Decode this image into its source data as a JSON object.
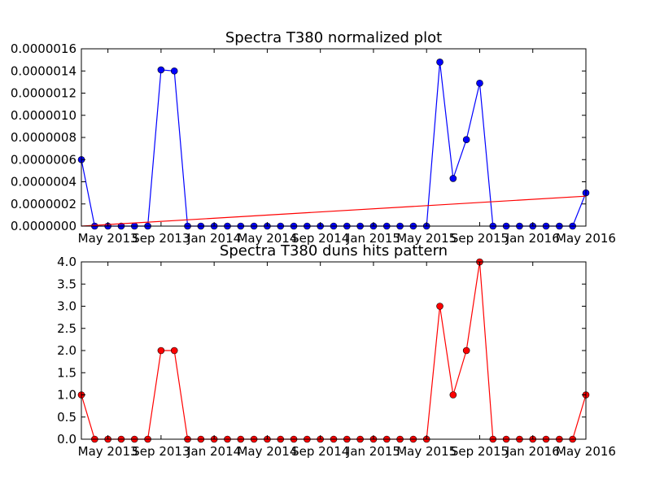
{
  "chart_data": [
    {
      "type": "line",
      "title": "Spectra T380 normalized plot",
      "xlabel": "",
      "ylabel": "",
      "xlim": [
        "2013-03",
        "2016-05"
      ],
      "ylim": [
        0,
        1.6e-06
      ],
      "grid": false,
      "x_tick_labels": [
        "May 2013",
        "Sep 2013",
        "Jan 2014",
        "May 2014",
        "Sep 2014",
        "Jan 2015",
        "May 2015",
        "Sep 2015",
        "Jan 2016",
        "May 2016"
      ],
      "y_tick_labels": [
        "0.0000000",
        "0.0000002",
        "0.0000004",
        "0.0000006",
        "0.0000008",
        "0.0000010",
        "0.0000012",
        "0.0000014",
        "0.0000016"
      ],
      "y_ticks": [
        0,
        2e-07,
        4e-07,
        6e-07,
        8e-07,
        1e-06,
        1.2e-06,
        1.4e-06,
        1.6e-06
      ],
      "x": [
        "2013-03",
        "2013-04",
        "2013-05",
        "2013-06",
        "2013-07",
        "2013-08",
        "2013-09",
        "2013-10",
        "2013-11",
        "2013-12",
        "2014-01",
        "2014-02",
        "2014-03",
        "2014-04",
        "2014-05",
        "2014-06",
        "2014-07",
        "2014-08",
        "2014-09",
        "2014-10",
        "2014-11",
        "2014-12",
        "2015-01",
        "2015-02",
        "2015-03",
        "2015-04",
        "2015-05",
        "2015-06",
        "2015-07",
        "2015-08",
        "2015-09",
        "2015-10",
        "2015-11",
        "2015-12",
        "2016-01",
        "2016-02",
        "2016-03",
        "2016-04",
        "2016-05"
      ],
      "series": [
        {
          "color": "#0000ff",
          "marker": "circle",
          "values": [
            6e-07,
            0,
            0,
            0,
            0,
            0,
            1.41e-06,
            1.4e-06,
            0,
            0,
            0,
            0,
            0,
            0,
            0,
            0,
            0,
            0,
            0,
            0,
            0,
            0,
            0,
            0,
            0,
            0,
            0,
            1.48e-06,
            4.3e-07,
            7.8e-07,
            1.29e-06,
            0,
            0,
            0,
            0,
            0,
            0,
            0,
            3e-07
          ]
        },
        {
          "color": "#ff0000",
          "marker": "none",
          "x": [
            "2013-03",
            "2016-05"
          ],
          "values": [
            0,
            2.7e-07
          ]
        }
      ]
    },
    {
      "type": "line",
      "title": "Spectra T380 duns hits pattern",
      "xlabel": "",
      "ylabel": "",
      "xlim": [
        "2013-03",
        "2016-05"
      ],
      "ylim": [
        0,
        4
      ],
      "grid": false,
      "x_tick_labels": [
        "May 2013",
        "Sep 2013",
        "Jan 2014",
        "May 2014",
        "Sep 2014",
        "Jan 2015",
        "May 2015",
        "Sep 2015",
        "Jan 2016",
        "May 2016"
      ],
      "y_tick_labels": [
        "0.0",
        "0.5",
        "1.0",
        "1.5",
        "2.0",
        "2.5",
        "3.0",
        "3.5",
        "4.0"
      ],
      "y_ticks": [
        0,
        0.5,
        1,
        1.5,
        2,
        2.5,
        3,
        3.5,
        4
      ],
      "x": [
        "2013-03",
        "2013-04",
        "2013-05",
        "2013-06",
        "2013-07",
        "2013-08",
        "2013-09",
        "2013-10",
        "2013-11",
        "2013-12",
        "2014-01",
        "2014-02",
        "2014-03",
        "2014-04",
        "2014-05",
        "2014-06",
        "2014-07",
        "2014-08",
        "2014-09",
        "2014-10",
        "2014-11",
        "2014-12",
        "2015-01",
        "2015-02",
        "2015-03",
        "2015-04",
        "2015-05",
        "2015-06",
        "2015-07",
        "2015-08",
        "2015-09",
        "2015-10",
        "2015-11",
        "2015-12",
        "2016-01",
        "2016-02",
        "2016-03",
        "2016-04",
        "2016-05"
      ],
      "series": [
        {
          "color": "#ff0000",
          "marker": "circle",
          "values": [
            1,
            0,
            0,
            0,
            0,
            0,
            2,
            2,
            0,
            0,
            0,
            0,
            0,
            0,
            0,
            0,
            0,
            0,
            0,
            0,
            0,
            0,
            0,
            0,
            0,
            0,
            0,
            3,
            1,
            2,
            4,
            0,
            0,
            0,
            0,
            0,
            0,
            0,
            1
          ]
        }
      ]
    }
  ]
}
